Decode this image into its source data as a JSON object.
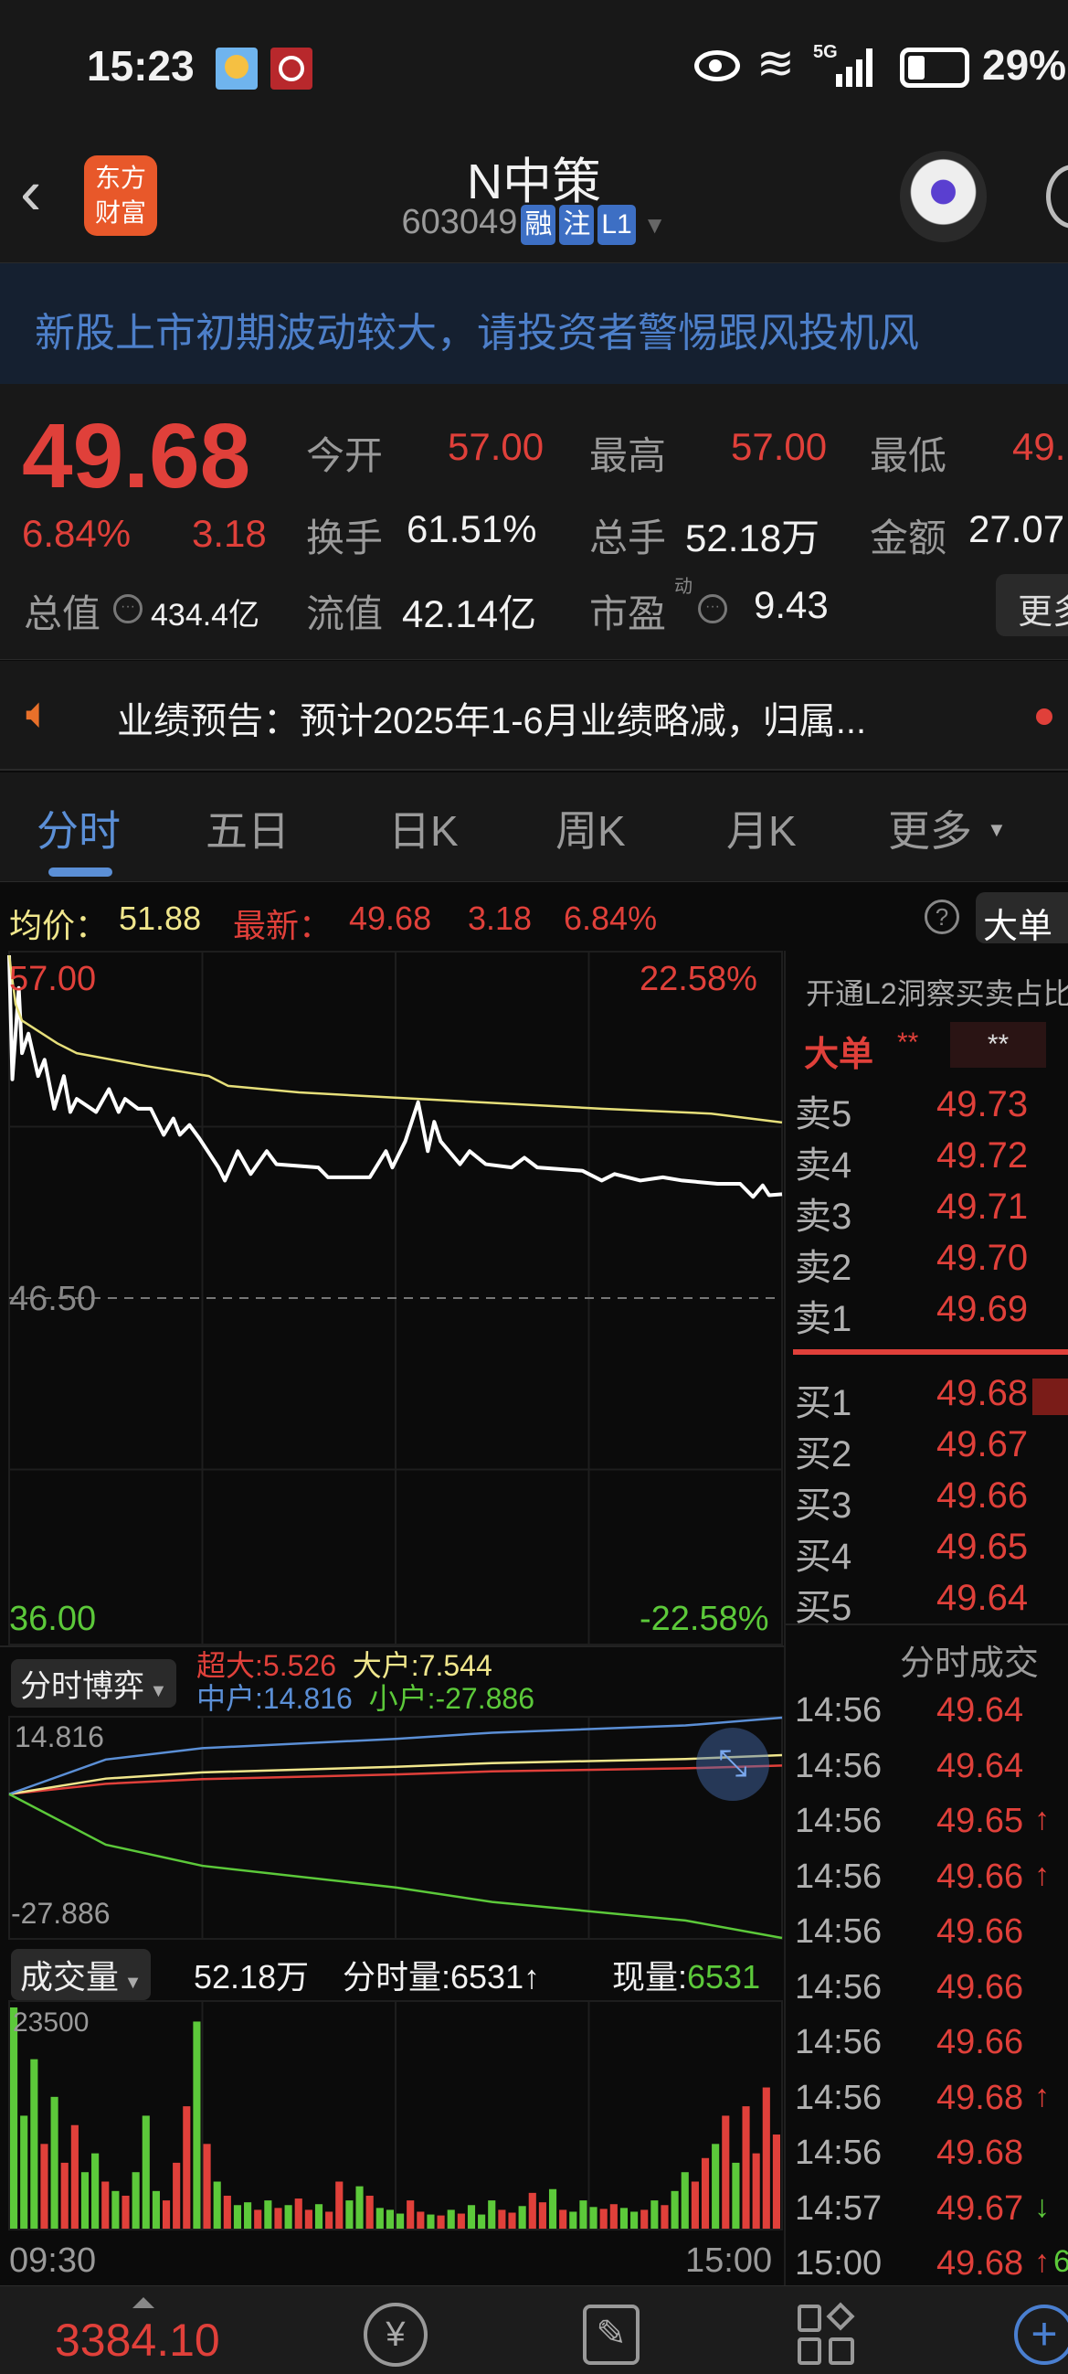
{
  "status_bar": {
    "time": "15:23",
    "network": "5G",
    "battery": "29%",
    "icons": [
      "weather-icon",
      "bank-app-icon",
      "eye-icon",
      "wifi-icon",
      "signal-icon",
      "battery-icon"
    ]
  },
  "header": {
    "title": "N中策",
    "code": "603049",
    "tags": [
      "融",
      "注",
      "L1"
    ],
    "logo_line1": "东方",
    "logo_line2": "财富"
  },
  "banner": {
    "text": "新股上市初期波动较大，请投资者警惕跟风投机风"
  },
  "quote": {
    "price": "49.68",
    "change_pct": "6.84%",
    "change": "3.18",
    "open_label": "今开",
    "open": "57.00",
    "high_label": "最高",
    "high": "57.00",
    "low_label": "最低",
    "low": "49.",
    "turnover_label": "换手",
    "turnover": "61.51%",
    "volume_label": "总手",
    "volume": "52.18万",
    "amount_label": "金额",
    "amount": "27.07",
    "mktcap_label": "总值",
    "mktcap": "434.4亿",
    "float_label": "流值",
    "float_cap": "42.14亿",
    "pe_label": "市盈",
    "pe_sup": "动",
    "pe": "9.43",
    "more": "更多"
  },
  "notice": {
    "text": "业绩预告：预计2025年1-6月业绩略减，归属..."
  },
  "tabs": [
    {
      "label": "分时",
      "active": true
    },
    {
      "label": "五日"
    },
    {
      "label": "日K"
    },
    {
      "label": "周K"
    },
    {
      "label": "月K"
    },
    {
      "label": "更多"
    }
  ],
  "info_row": {
    "avg_label": "均价：",
    "avg": "51.88",
    "latest_label": "最新：",
    "latest": "49.68",
    "change": "3.18",
    "change_pct": "6.84%",
    "big_order_button": "大单"
  },
  "colors": {
    "up": "#e0403a",
    "down": "#5cc93a",
    "price_line": "#ffffff",
    "avg_line": "#e6df7a",
    "accent": "#5b8fd6",
    "super": "#e0403a",
    "large": "#f0e68c",
    "medium": "#5b8fd6",
    "small": "#5cc93a"
  },
  "chart_data": [
    {
      "type": "line",
      "ylim": [
        36.0,
        57.0
      ],
      "y_ticks_left": [
        "57.00",
        "46.50",
        "36.00"
      ],
      "y_ticks_right": [
        "22.58%",
        "-22.58%"
      ],
      "baseline": 46.5,
      "x_ticks": [
        "09:30",
        "15:00"
      ],
      "series": [
        {
          "key": "price",
          "x": [
            "09:30",
            "09:31",
            "09:33",
            "09:34",
            "09:36",
            "09:39",
            "09:41",
            "09:44",
            "09:47",
            "09:49",
            "09:51",
            "09:57",
            "10:01",
            "10:04",
            "10:06",
            "10:10",
            "10:14",
            "10:18",
            "10:21",
            "10:23",
            "10:26",
            "10:29",
            "10:35",
            "10:37",
            "10:41",
            "10:45",
            "10:50",
            "10:53",
            "11:06",
            "11:09",
            "11:22",
            "11:27",
            "11:29",
            "13:03",
            "13:07",
            "13:10",
            "13:12",
            "13:14",
            "13:20",
            "13:23",
            "13:28",
            "13:36",
            "13:40",
            "13:44",
            "13:58",
            "14:04",
            "14:08",
            "14:16",
            "14:23",
            "14:29",
            "14:40",
            "14:47",
            "14:51",
            "14:54",
            "14:56",
            "15:00"
          ],
          "values": [
            57.0,
            53.2,
            56.0,
            54.0,
            54.6,
            53.3,
            53.8,
            52.3,
            53.3,
            52.2,
            52.6,
            52.2,
            52.9,
            52.2,
            52.6,
            52.3,
            52.3,
            51.5,
            52.0,
            51.5,
            51.8,
            51.4,
            50.5,
            50.1,
            51.0,
            50.3,
            51.0,
            50.6,
            50.5,
            50.2,
            50.2,
            51.0,
            50.5,
            51.3,
            52.5,
            51.0,
            51.9,
            51.3,
            50.6,
            51.0,
            50.6,
            50.5,
            50.8,
            50.5,
            50.4,
            50.1,
            50.3,
            50.1,
            50.2,
            50.1,
            50.0,
            50.0,
            49.6,
            49.95,
            49.65,
            49.68
          ]
        },
        {
          "key": "avg",
          "x": [
            "09:30",
            "09:32",
            "09:34",
            "09:45",
            "09:51",
            "10:13",
            "10:32",
            "10:38",
            "11:00",
            "13:07",
            "14:04",
            "14:38",
            "15:00"
          ],
          "values": [
            57.0,
            55.5,
            55.0,
            54.3,
            54.0,
            53.6,
            53.3,
            53.0,
            52.8,
            52.6,
            52.3,
            52.15,
            51.88
          ]
        }
      ]
    },
    {
      "type": "line",
      "selector": "分时博弈",
      "ylim": [
        -27.886,
        14.816
      ],
      "y_ticks": [
        "14.816",
        "-27.886"
      ],
      "x": [
        "09:30",
        "10:00",
        "10:30",
        "11:30",
        "13:30",
        "14:30",
        "15:00"
      ],
      "series": [
        {
          "name": "超大",
          "value": "5.526",
          "values": [
            0,
            2.0,
            2.9,
            3.8,
            4.4,
            5.0,
            5.526
          ]
        },
        {
          "name": "大户",
          "value": "7.544",
          "values": [
            0,
            3.0,
            4.2,
            5.3,
            6.0,
            6.8,
            7.544
          ]
        },
        {
          "name": "中户",
          "value": "14.816",
          "values": [
            0,
            6.7,
            8.9,
            10.7,
            11.9,
            13.3,
            14.816
          ]
        },
        {
          "name": "小户",
          "value": "-27.886",
          "values": [
            0,
            -9.8,
            -13.9,
            -18.1,
            -20.9,
            -24.5,
            -27.886
          ]
        }
      ]
    },
    {
      "type": "bar",
      "selector": "成交量",
      "total": "52.18万",
      "period_label": "分时量:",
      "period": "6531",
      "period_arrow": "↑",
      "current_label": "现量:",
      "current": "6531",
      "ymax_label": "23500",
      "ylim": [
        0,
        23500
      ],
      "x_ticks": [
        "09:30",
        "15:00"
      ],
      "values": [
        23500,
        12000,
        18000,
        9000,
        14000,
        7000,
        11000,
        6000,
        8000,
        5000,
        4000,
        3500,
        6000,
        12000,
        4000,
        3000,
        7000,
        13000,
        22000,
        9000,
        5000,
        3500,
        2500,
        2800,
        2000,
        3000,
        2200,
        2500,
        3200,
        2000,
        2600,
        1800,
        5000,
        3000,
        4500,
        3500,
        2200,
        2000,
        1600,
        3000,
        1800,
        1500,
        1400,
        2000,
        1600,
        2500,
        1500,
        3000,
        2000,
        1700,
        2400,
        3800,
        2800,
        4200,
        2000,
        1800,
        3000,
        2300,
        2100,
        2600,
        2200,
        1800,
        2000,
        3000,
        2500,
        4000,
        6000,
        5000,
        7500,
        9000,
        12000,
        7000,
        13000,
        8000,
        15000,
        10000
      ],
      "directions": "gggrgrrggrgrgggrrrgrgrggrgrgrrgrrggrgggrrgrgrgggrrgrrgrgggrrggrgrggrrgrgrr"
    }
  ],
  "order_book": {
    "promo": "开通L2洞察买卖占比",
    "big_label": "大单",
    "big_v1": "**",
    "big_v2": "**",
    "asks": [
      {
        "label": "卖5",
        "price": "49.73"
      },
      {
        "label": "卖4",
        "price": "49.72"
      },
      {
        "label": "卖3",
        "price": "49.71"
      },
      {
        "label": "卖2",
        "price": "49.70"
      },
      {
        "label": "卖1",
        "price": "49.69"
      }
    ],
    "bids": [
      {
        "label": "买1",
        "price": "49.68"
      },
      {
        "label": "买2",
        "price": "49.67"
      },
      {
        "label": "买3",
        "price": "49.66"
      },
      {
        "label": "买4",
        "price": "49.65"
      },
      {
        "label": "买5",
        "price": "49.64"
      }
    ]
  },
  "trades": {
    "title": "分时成交",
    "rows": [
      {
        "time": "14:56",
        "price": "49.64",
        "arrow": ""
      },
      {
        "time": "14:56",
        "price": "49.64",
        "arrow": ""
      },
      {
        "time": "14:56",
        "price": "49.65",
        "arrow": "↑"
      },
      {
        "time": "14:56",
        "price": "49.66",
        "arrow": "↑"
      },
      {
        "time": "14:56",
        "price": "49.66",
        "arrow": ""
      },
      {
        "time": "14:56",
        "price": "49.66",
        "arrow": ""
      },
      {
        "time": "14:56",
        "price": "49.66",
        "arrow": ""
      },
      {
        "time": "14:56",
        "price": "49.68",
        "arrow": "↑"
      },
      {
        "time": "14:56",
        "price": "49.68",
        "arrow": ""
      },
      {
        "time": "14:57",
        "price": "49.67",
        "arrow": "↓"
      },
      {
        "time": "15:00",
        "price": "49.68",
        "arrow": "↑",
        "extra": "6"
      }
    ]
  },
  "bottom_nav": {
    "index_value": "3384.10",
    "icons": [
      "trade-yuan-icon",
      "edit-note-icon",
      "apps-grid-icon",
      "add-circle-icon"
    ]
  }
}
